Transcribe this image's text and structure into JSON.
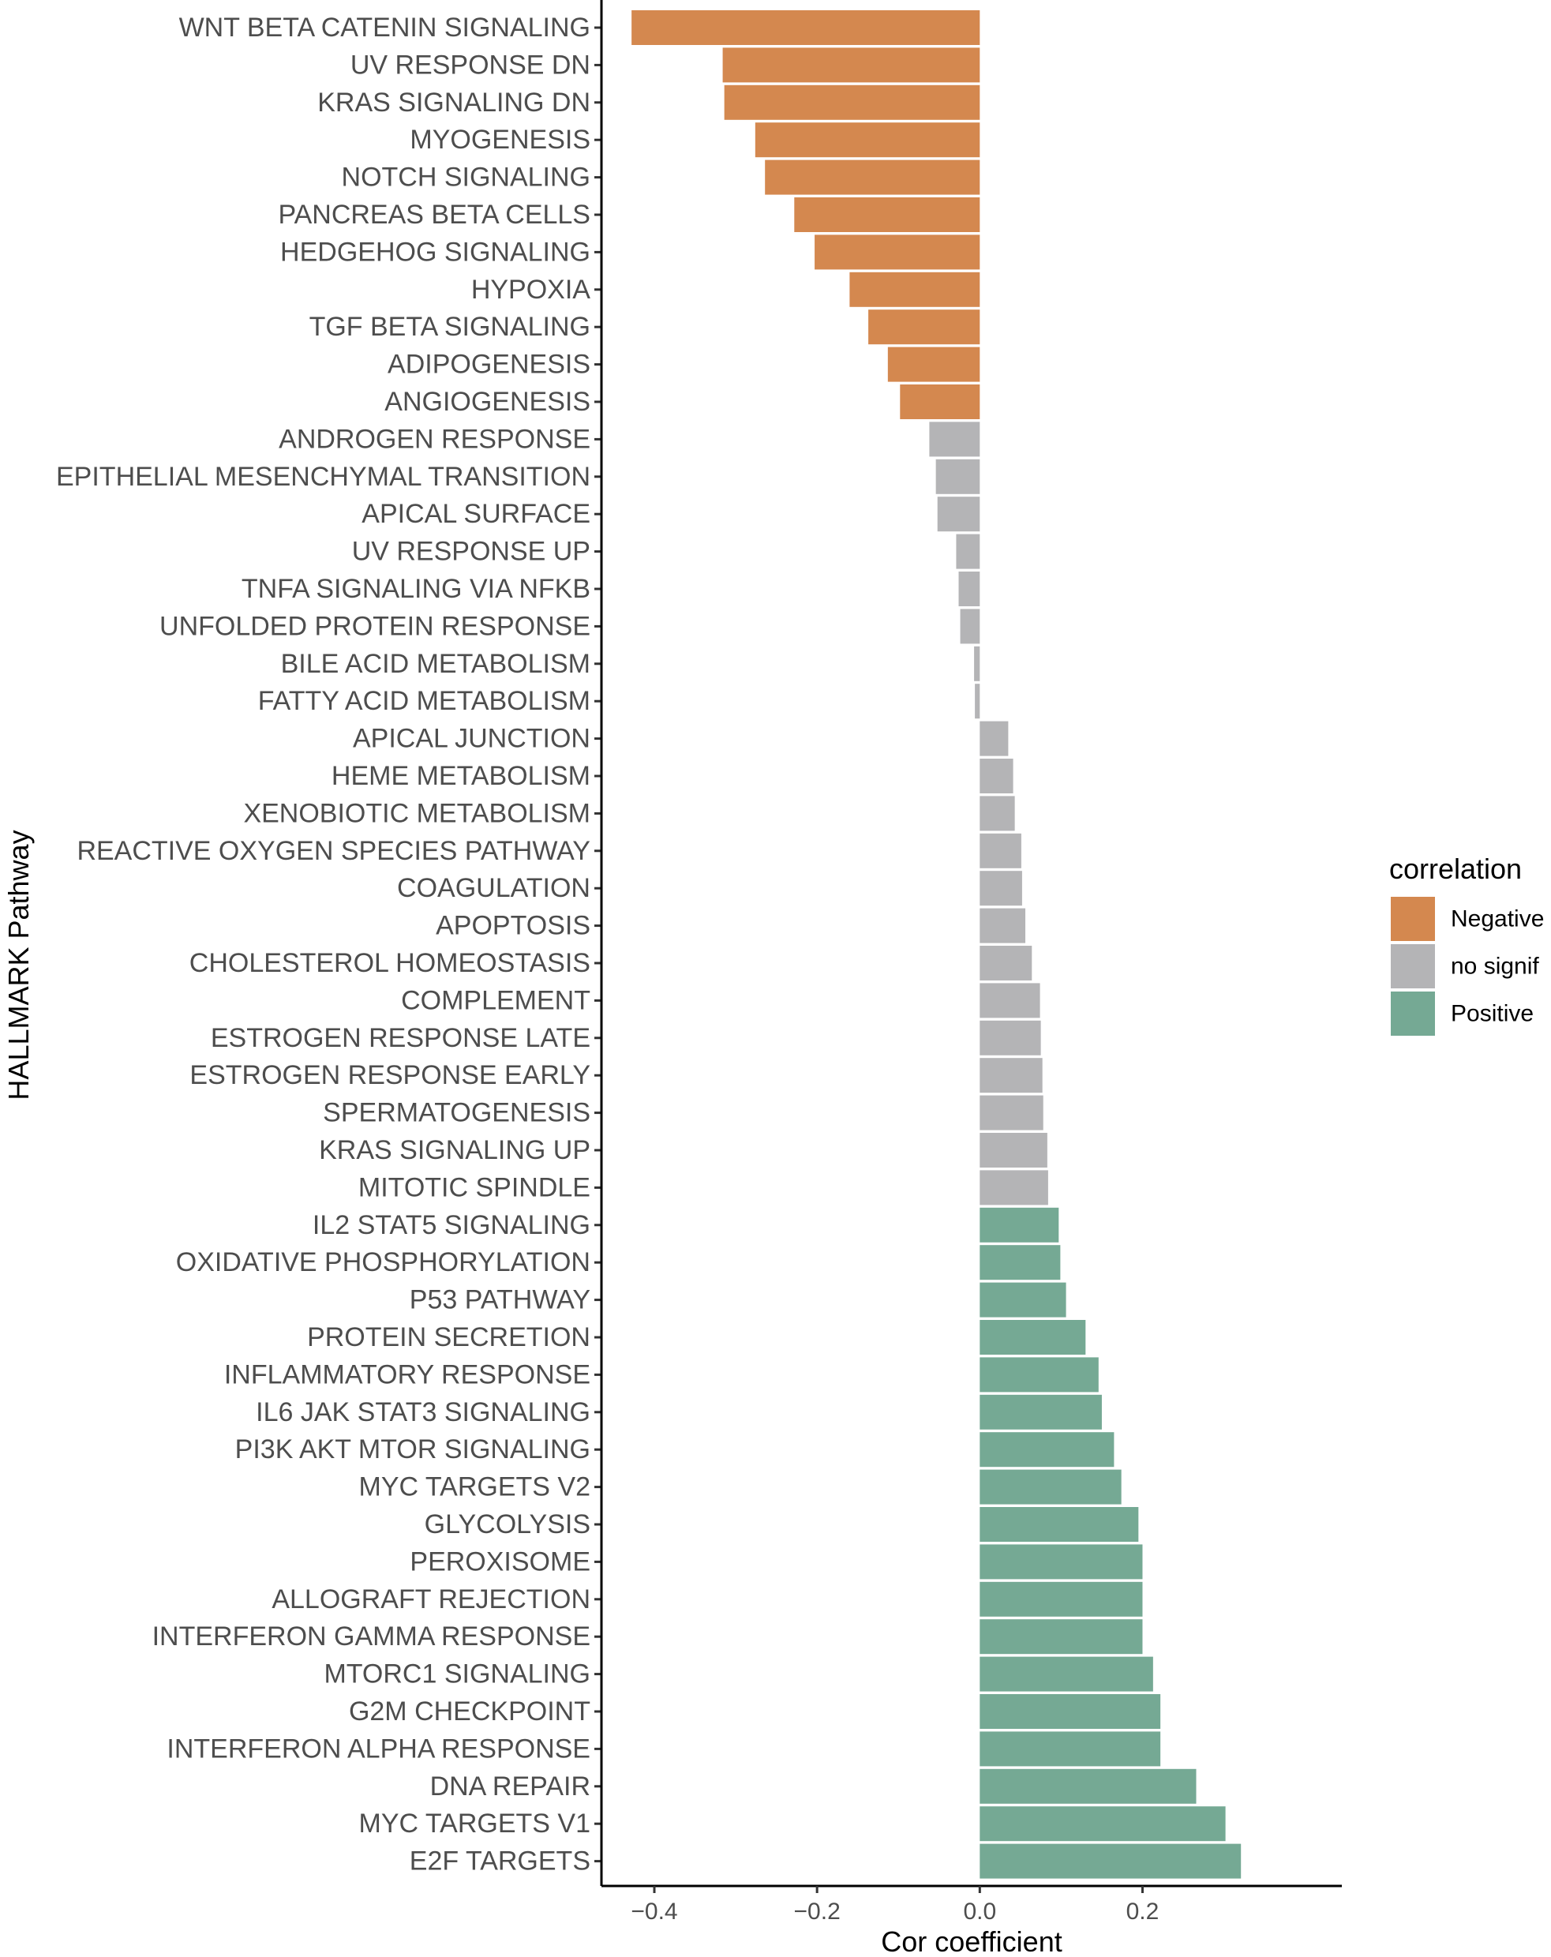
{
  "chart_data": {
    "type": "bar",
    "orientation": "horizontal",
    "xlabel": "Cor coefficient",
    "ylabel": "HALLMARK Pathway",
    "xlim": [
      -0.465,
      0.445
    ],
    "xticks": [
      -0.4,
      -0.2,
      0.0,
      0.2
    ],
    "xtick_labels": [
      "−0.4",
      "−0.2",
      "0.0",
      "0.2"
    ],
    "grid": false,
    "legend": {
      "title": "correlation",
      "placement": "right",
      "entries": [
        {
          "label": "Negative",
          "color": "#D4884F"
        },
        {
          "label": "no signif",
          "color": "#B4B4B6"
        },
        {
          "label": "Positive",
          "color": "#75A994"
        }
      ]
    },
    "categories": [
      "WNT BETA CATENIN SIGNALING",
      "UV RESPONSE DN",
      "KRAS SIGNALING DN",
      "MYOGENESIS",
      "NOTCH SIGNALING",
      "PANCREAS BETA CELLS",
      "HEDGEHOG SIGNALING",
      "HYPOXIA",
      "TGF BETA SIGNALING",
      "ADIPOGENESIS",
      "ANGIOGENESIS",
      "ANDROGEN RESPONSE",
      "EPITHELIAL MESENCHYMAL TRANSITION",
      "APICAL SURFACE",
      "UV RESPONSE UP",
      "TNFA SIGNALING VIA NFKB",
      "UNFOLDED PROTEIN RESPONSE",
      "BILE ACID METABOLISM",
      "FATTY ACID METABOLISM",
      "APICAL JUNCTION",
      "HEME METABOLISM",
      "XENOBIOTIC METABOLISM",
      "REACTIVE OXYGEN SPECIES PATHWAY",
      "COAGULATION",
      "APOPTOSIS",
      "CHOLESTEROL HOMEOSTASIS",
      "COMPLEMENT",
      "ESTROGEN RESPONSE LATE",
      "ESTROGEN RESPONSE EARLY",
      "SPERMATOGENESIS",
      "KRAS SIGNALING UP",
      "MITOTIC SPINDLE",
      "IL2 STAT5 SIGNALING",
      "OXIDATIVE PHOSPHORYLATION",
      "P53 PATHWAY",
      "PROTEIN SECRETION",
      "INFLAMMATORY RESPONSE",
      "IL6 JAK STAT3 SIGNALING",
      "PI3K AKT MTOR SIGNALING",
      "MYC TARGETS V2",
      "GLYCOLYSIS",
      "PEROXISOME",
      "ALLOGRAFT REJECTION",
      "INTERFERON GAMMA RESPONSE",
      "MTORC1 SIGNALING",
      "G2M CHECKPOINT",
      "INTERFERON ALPHA RESPONSE",
      "DNA REPAIR",
      "MYC TARGETS V1",
      "E2F TARGETS"
    ],
    "values": [
      -0.428,
      -0.316,
      -0.314,
      -0.276,
      -0.264,
      -0.228,
      -0.203,
      -0.16,
      -0.137,
      -0.113,
      -0.098,
      -0.062,
      -0.054,
      -0.052,
      -0.029,
      -0.026,
      -0.024,
      -0.007,
      -0.006,
      0.035,
      0.041,
      0.043,
      0.051,
      0.052,
      0.056,
      0.064,
      0.074,
      0.075,
      0.077,
      0.078,
      0.083,
      0.084,
      0.097,
      0.099,
      0.106,
      0.13,
      0.146,
      0.15,
      0.165,
      0.174,
      0.195,
      0.2,
      0.2,
      0.2,
      0.213,
      0.222,
      0.222,
      0.266,
      0.302,
      0.321
    ],
    "groups": [
      "Negative",
      "Negative",
      "Negative",
      "Negative",
      "Negative",
      "Negative",
      "Negative",
      "Negative",
      "Negative",
      "Negative",
      "Negative",
      "no signif",
      "no signif",
      "no signif",
      "no signif",
      "no signif",
      "no signif",
      "no signif",
      "no signif",
      "no signif",
      "no signif",
      "no signif",
      "no signif",
      "no signif",
      "no signif",
      "no signif",
      "no signif",
      "no signif",
      "no signif",
      "no signif",
      "no signif",
      "no signif",
      "Positive",
      "Positive",
      "Positive",
      "Positive",
      "Positive",
      "Positive",
      "Positive",
      "Positive",
      "Positive",
      "Positive",
      "Positive",
      "Positive",
      "Positive",
      "Positive",
      "Positive",
      "Positive",
      "Positive",
      "Positive"
    ]
  }
}
